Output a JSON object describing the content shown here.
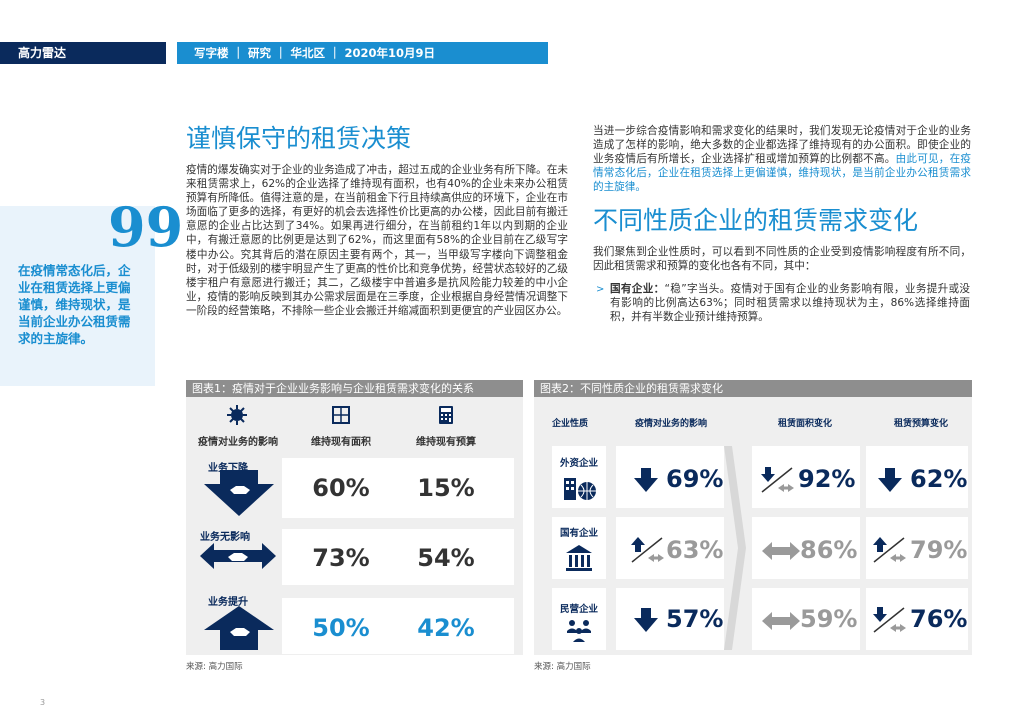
{
  "header": {
    "brand": "高力雷达",
    "meta": "写字楼 ｜ 研究 ｜ 华北区 ｜ 2020年10月9日"
  },
  "quote": {
    "mark": "99",
    "text": "在疫情常态化后，企业在租赁选择上更偏谨慎，维持现状，是当前企业办公租赁需求的主旋律。"
  },
  "section1": {
    "title": "谨慎保守的租赁决策",
    "para": "疫情的爆发确实对于企业的业务造成了冲击，超过五成的企业业务有所下降。在未来租赁需求上，62%的企业选择了维持现有面积，也有40%的企业未来办公租赁预算有所降低。值得注意的是，在当前租金下行且持续高供应的环境下，企业在市场面临了更多的选择，有更好的机会去选择性价比更高的办公楼，因此目前有搬迁意愿的企业占比达到了34%。如果再进行细分，在当前租约1年以内到期的企业中，有搬迁意愿的比例更是达到了62%，而这里面有58%的企业目前在乙级写字楼中办公。究其背后的潜在原因主要有两个，其一，当甲级写字楼向下调整租金时，对于低级别的楼宇明显产生了更高的性价比和竞争优势，经营状态较好的乙级楼宇租户有意愿进行搬迁；其二，乙级楼宇中普遍多是抗风险能力较差的中小企业，疫情的影响反映到其办公需求层面是在三季度，企业根据自身经营情况调整下一阶段的经营策略，不排除一些企业会搬迁并缩减面积到更便宜的产业园区办公。"
  },
  "section2": {
    "intro_a": "当进一步综合疫情影响和需求变化的结果时，我们发现无论疫情对于企业的业务造成了怎样的影响，绝大多数的企业都选择了维持现有的办公面积。即使企业的业务疫情后有所增长，企业选择扩租或增加预算的比例都不高。",
    "intro_b": "由此可见，在疫情常态化后，企业在租赁选择上更偏谨慎，维持现状，是当前企业办公租赁需求的主旋律。",
    "title": "不同性质企业的租赁需求变化",
    "para": "我们聚焦到企业性质时，可以看到不同性质的企业受到疫情影响程度有所不同，因此租赁需求和预算的变化也各有不同，其中：",
    "bullet_mark": ">",
    "bullet_lead": "国有企业：",
    "bullet_text": "“稳”字当头。疫情对于国有企业的业务影响有限，业务提升或没有影响的比例高达63%；同时租赁需求以维持现状为主，86%选择维持面积，并有半数企业预计维持预算。"
  },
  "chart1": {
    "heading": "图表1：疫情对于企业业务影响与企业租赁需求变化的关系",
    "col_headers": [
      "疫情对业务的影响",
      "维持现有面积",
      "维持现有预算"
    ],
    "rows": [
      {
        "label": "业务下降",
        "area": "60%",
        "budget": "15%"
      },
      {
        "label": "业务无影响",
        "area": "73%",
        "budget": "54%"
      },
      {
        "label": "业务提升",
        "area": "50%",
        "budget": "42%"
      }
    ],
    "source": "来源: 高力国际"
  },
  "chart2": {
    "heading": "图表2：不同性质企业的租赁需求变化",
    "col_headers": [
      "企业性质",
      "疫情对业务的影响",
      "租赁面积变化",
      "租赁预算变化"
    ],
    "rows": [
      {
        "label": "外资企业",
        "impact": "69%",
        "area": "92%",
        "budget": "62%"
      },
      {
        "label": "国有企业",
        "impact": "63%",
        "area": "86%",
        "budget": "79%"
      },
      {
        "label": "民营企业",
        "impact": "57%",
        "area": "59%",
        "budget": "76%"
      }
    ],
    "source": "来源: 高力国际"
  },
  "colors": {
    "navy": "#0a2a5c",
    "blue": "#1a8ed0",
    "grey": "#8e8e8e"
  },
  "footer": {
    "page": "3"
  }
}
